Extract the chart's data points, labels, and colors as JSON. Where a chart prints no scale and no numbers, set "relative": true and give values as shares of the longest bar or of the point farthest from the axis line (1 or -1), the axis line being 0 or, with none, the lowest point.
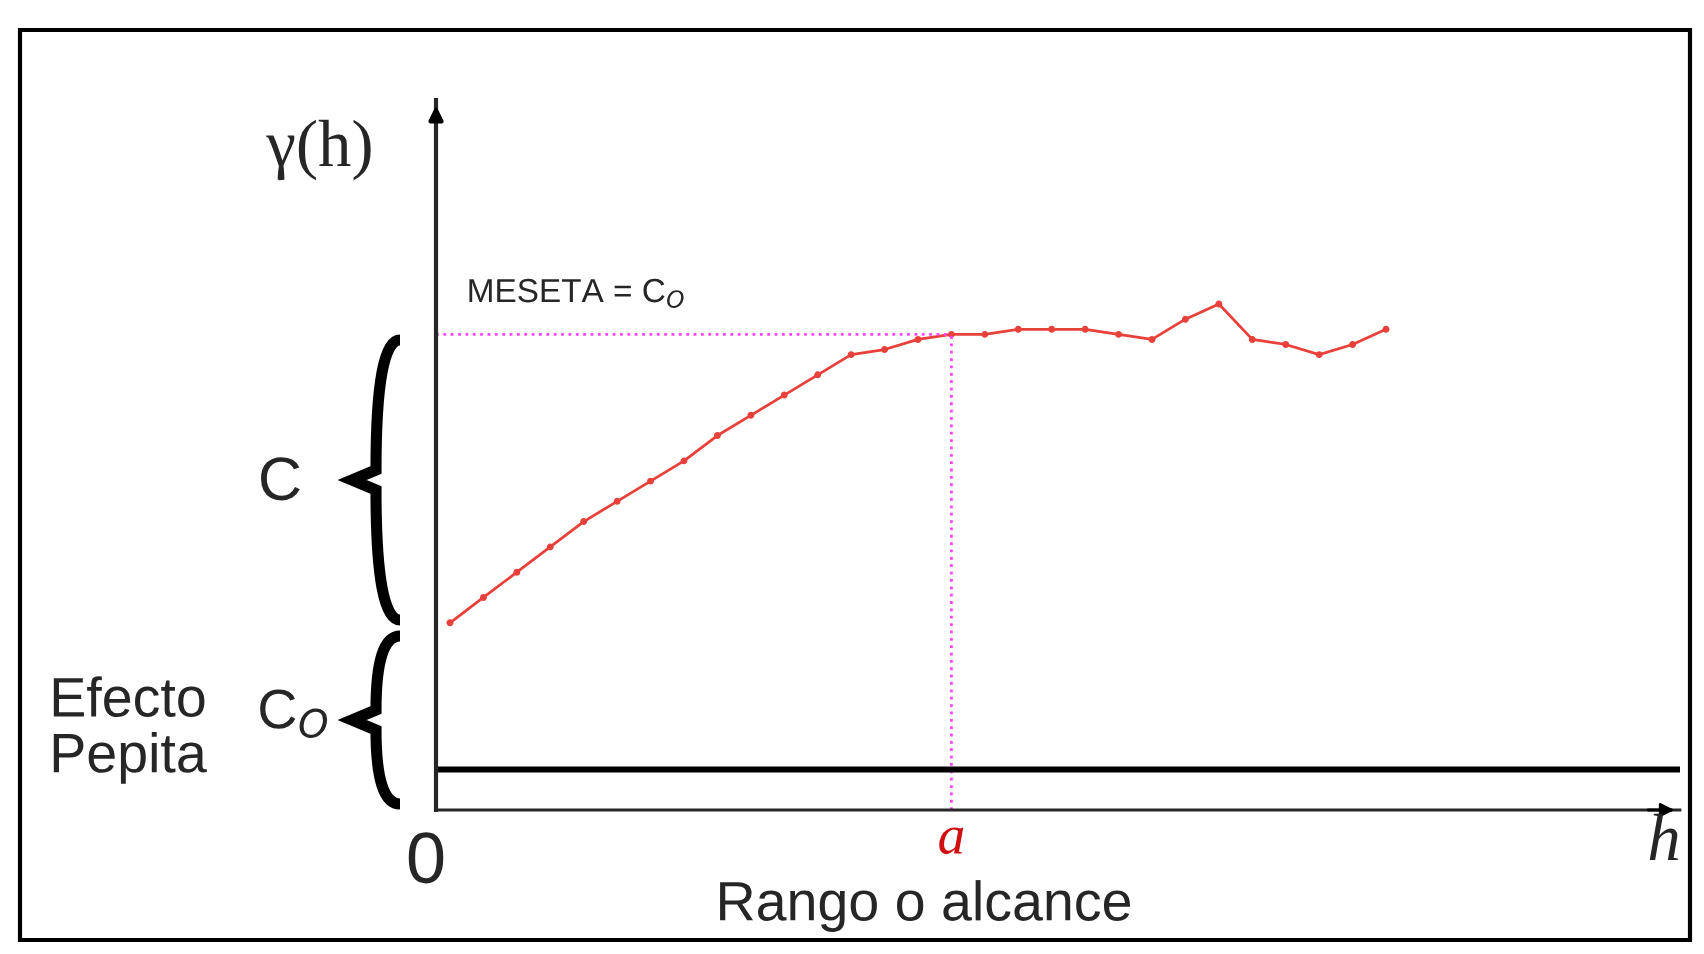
{
  "chart_data": {
    "type": "line",
    "relative": true,
    "ylabel": "γ(h)",
    "xlabel": "h",
    "categories": [
      null,
      null,
      null,
      null,
      null,
      null,
      null,
      null,
      null,
      null,
      null,
      null,
      null,
      null,
      null,
      null,
      null,
      null,
      null,
      null,
      null,
      null,
      null,
      null,
      null,
      null,
      null,
      null,
      null
    ],
    "series": [
      {
        "color": "#e8403a",
        "values": [
          0.37,
          0.42,
          0.47,
          0.52,
          0.57,
          0.61,
          0.65,
          0.69,
          0.74,
          0.78,
          0.82,
          0.86,
          0.9,
          0.91,
          0.93,
          0.94,
          0.94,
          0.95,
          0.95,
          0.95,
          0.94,
          0.93,
          0.97,
          1.0,
          0.93,
          0.92,
          0.9,
          0.92,
          0.95
        ]
      }
    ],
    "marker": "circle",
    "line_style": "solid",
    "ref_lines": [
      {
        "axis": "y",
        "value": 0.94,
        "label": "MESETA = C$_{O}$",
        "color": "#ff44ff",
        "line_style": "dotted"
      },
      {
        "axis": "y",
        "value": 0.08,
        "label": null,
        "color": "#000000",
        "line_style": "solid"
      }
    ],
    "annotations": [
      "C",
      "C$_{O}$",
      "Efecto\nPepita",
      "0",
      "Rango o alcance",
      "a"
    ]
  }
}
